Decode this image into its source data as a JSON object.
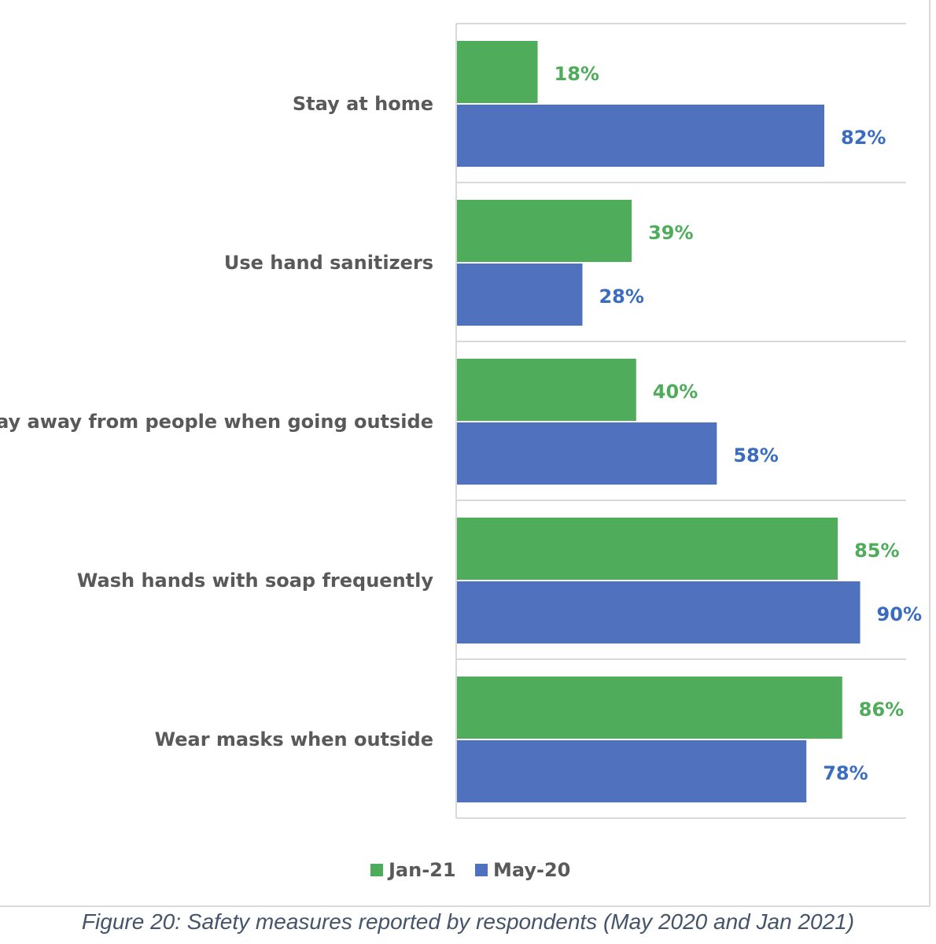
{
  "chart_data": {
    "type": "bar",
    "orientation": "horizontal",
    "categories": [
      "Stay at home",
      "Use hand sanitizers",
      "Stay away from people when going outside",
      "Wash hands with soap frequently",
      "Wear masks when outside"
    ],
    "series": [
      {
        "name": "Jan-21",
        "color": "#4fac5b",
        "values": [
          18,
          39,
          40,
          85,
          86
        ],
        "labels": [
          "18%",
          "39%",
          "40%",
          "85%",
          "86%"
        ]
      },
      {
        "name": "May-20",
        "color": "#4f71be",
        "values": [
          82,
          28,
          58,
          90,
          78
        ],
        "labels": [
          "82%",
          "28%",
          "58%",
          "90%",
          "78%"
        ]
      }
    ],
    "label_colors": {
      "Jan-21": "#4fac5b",
      "May-20": "#3a6cc0"
    },
    "xlim": [
      0,
      100
    ],
    "grid": true,
    "legend_position": "bottom",
    "title": ""
  },
  "caption": "Figure 20: Safety measures reported by respondents (May 2020 and Jan 2021)"
}
